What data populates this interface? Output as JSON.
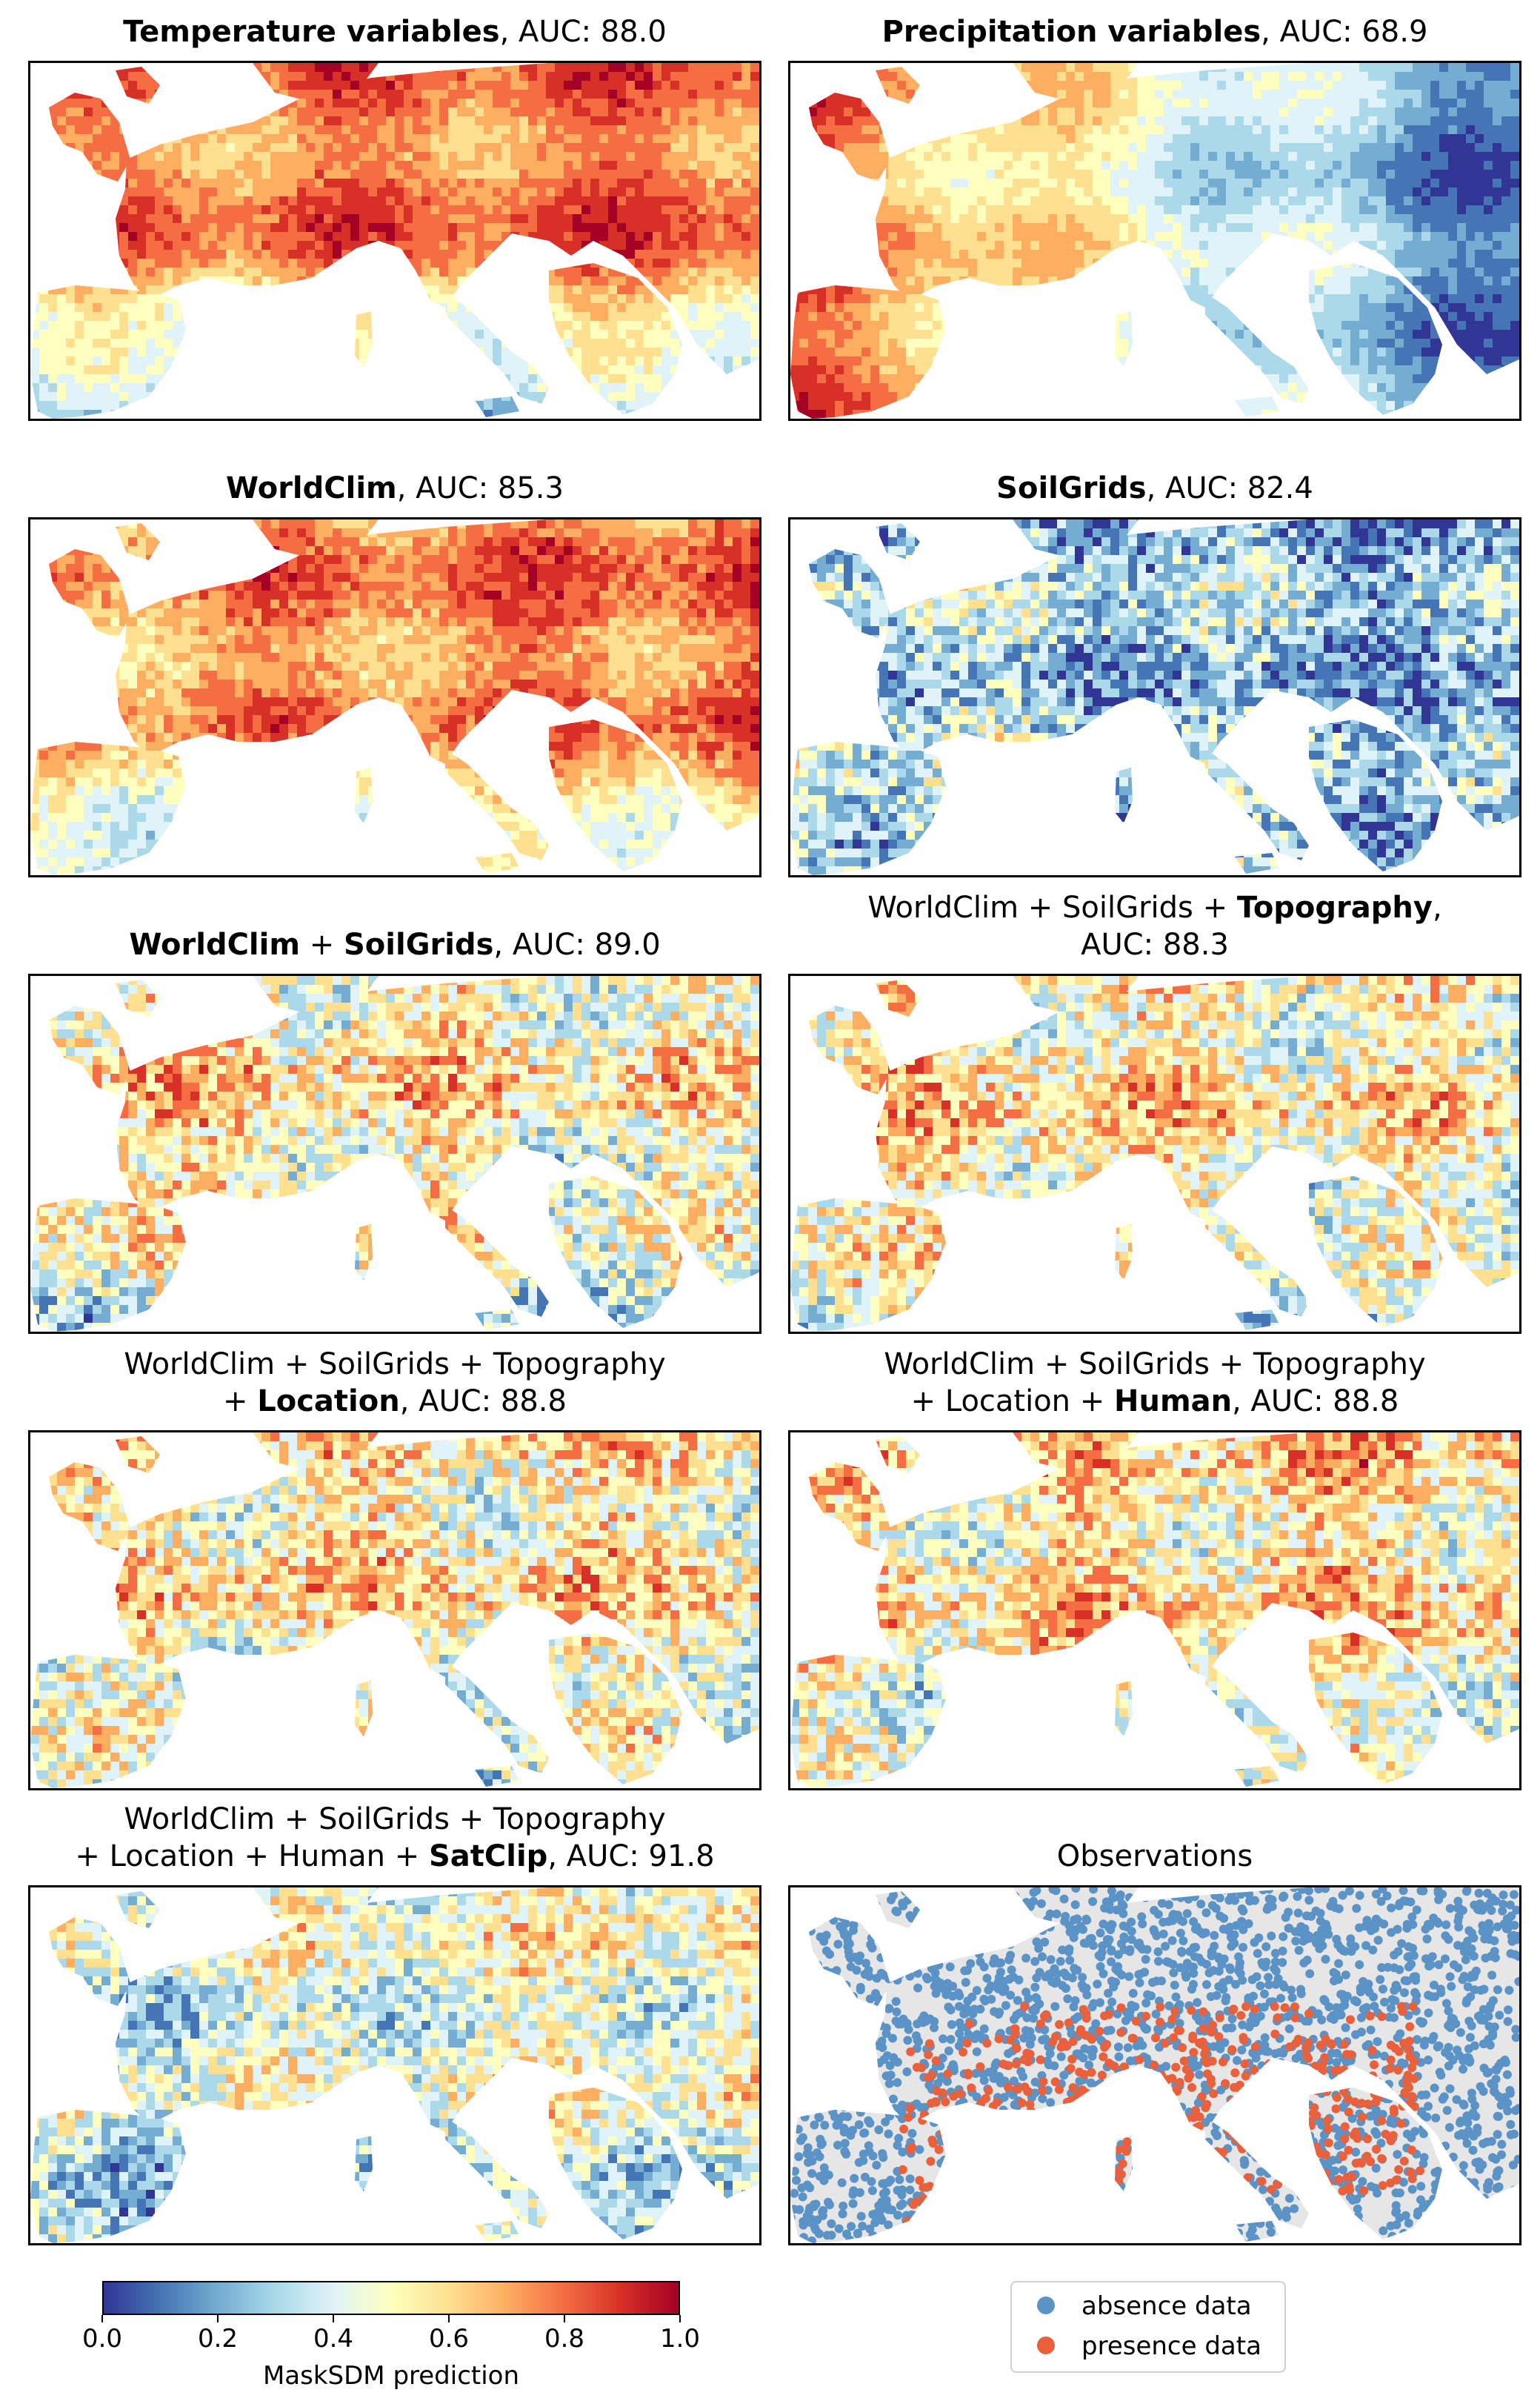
{
  "panels": [
    {
      "title_bold": "Temperature variables",
      "title_rest": ", AUC: 88.0",
      "map_style": "temperature"
    },
    {
      "title_bold": "Precipitation variables",
      "title_rest": ", AUC: 68.9",
      "map_style": "precipitation"
    },
    {
      "title_bold": "WorldClim",
      "title_rest": ", AUC: 85.3",
      "map_style": "worldclim"
    },
    {
      "title_bold": "SoilGrids",
      "title_rest": ", AUC: 82.4",
      "map_style": "soilgrids"
    },
    {
      "line1_a": "WorldClim",
      "line1_b": " + ",
      "line1_c": "SoilGrids",
      "line1_d": ", AUC: 89.0",
      "map_style": "wc_sg"
    },
    {
      "line1_a": "WorldClim + SoilGrids + ",
      "line1_b": "Topography",
      "line1_c": ",",
      "line2": "AUC: 88.3",
      "map_style": "wc_sg_topo"
    },
    {
      "line1": "WorldClim + SoilGrids + Topography",
      "line2_a": "+ ",
      "line2_b": "Location",
      "line2_c": ", AUC: 88.8",
      "map_style": "location"
    },
    {
      "line1": "WorldClim + SoilGrids + Topography",
      "line2_a": "+ Location + ",
      "line2_b": "Human",
      "line2_c": ", AUC: 88.8",
      "map_style": "human"
    },
    {
      "line1": "WorldClim + SoilGrids + Topography",
      "line2_a": "+ Location + Human + ",
      "line2_b": "SatClip",
      "line2_c": ", AUC: 91.8",
      "map_style": "satclip"
    },
    {
      "title": "Observations",
      "map_style": "observations"
    }
  ],
  "colorbar": {
    "label": "MaskSDM prediction",
    "ticks": [
      "0.0",
      "0.2",
      "0.4",
      "0.6",
      "0.8",
      "1.0"
    ],
    "range": [
      0,
      1
    ],
    "colormap": "RdYlBu_r",
    "stops": [
      "#313695",
      "#4575b4",
      "#74add1",
      "#abd9e9",
      "#e0f3f8",
      "#ffffbf",
      "#fee090",
      "#fdae61",
      "#f46d43",
      "#d73027",
      "#a50026"
    ]
  },
  "legend": {
    "items": [
      {
        "label": "absence data",
        "color": "#5b93c6"
      },
      {
        "label": "presence data",
        "color": "#e8603c"
      }
    ]
  },
  "colors": {
    "absence": "#5b93c6",
    "presence": "#e8603c",
    "land_grey": "#e6e6e6"
  }
}
